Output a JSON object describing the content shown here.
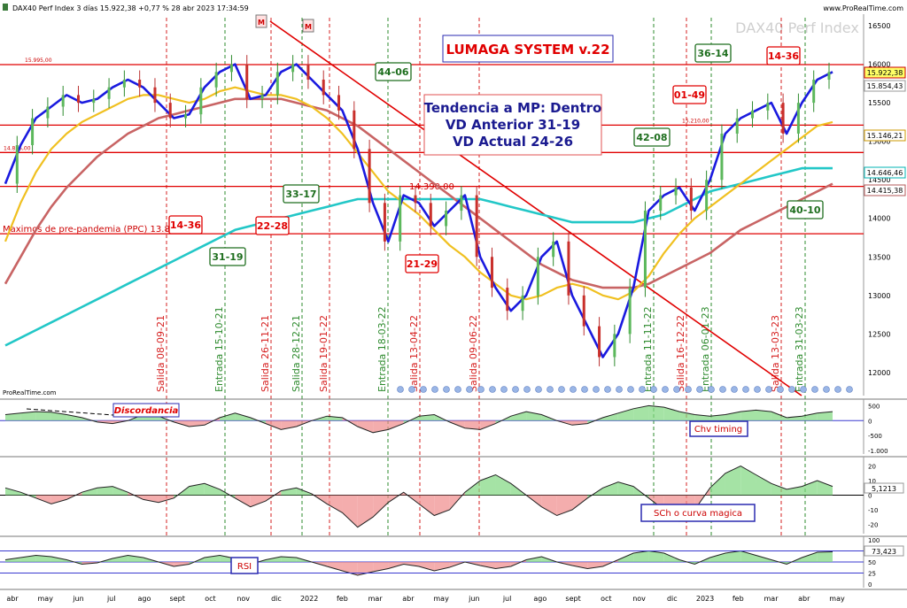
{
  "header": {
    "left": "DAX40 Perf Index 3 días 15.922,38 +0,77 % 28 abr 2023 17:34:59",
    "right": "www.ProRealTime.com"
  },
  "watermark": "DAX40 Perf Index",
  "footer_brand": "ProRealTime.com",
  "system_title": "LUMAGA SYSTEM v.22",
  "trend_box": [
    "Tendencia a MP: Dentro",
    "VD Anterior 31-19",
    "VD Actual 24-26"
  ],
  "level_labels": {
    "l15995": "15.995,00",
    "l15210": "15.210,00",
    "l14855": "14.855,00",
    "l14390": "14.390,00",
    "ppc": "Maximos de pre-pandemia (PPC) 13.8000"
  },
  "boxes": [
    {
      "text": "14-36",
      "color": "red"
    },
    {
      "text": "22-28",
      "color": "red"
    },
    {
      "text": "31-19",
      "color": "green"
    },
    {
      "text": "33-17",
      "color": "green"
    },
    {
      "text": "44-06",
      "color": "green"
    },
    {
      "text": "21-29",
      "color": "red"
    },
    {
      "text": "42-08",
      "color": "green"
    },
    {
      "text": "01-49",
      "color": "red"
    },
    {
      "text": "36-14",
      "color": "green"
    },
    {
      "text": "14-36",
      "color": "red"
    },
    {
      "text": "40-10",
      "color": "green"
    }
  ],
  "markers": [
    "M",
    "M"
  ],
  "price_badges": [
    {
      "text": "15.922,38",
      "bg": "#ffff66",
      "border": "#cc0000"
    },
    {
      "text": "15.854,43",
      "bg": "#ffffff",
      "border": "#999999"
    },
    {
      "text": "15.146,21",
      "bg": "#ffffff",
      "border": "#cc9900"
    },
    {
      "text": "14.646,46",
      "bg": "#ffffff",
      "border": "#00b3b3"
    },
    {
      "text": "14.415,38",
      "bg": "#ffffff",
      "border": "#b35959"
    }
  ],
  "signals": [
    {
      "text": "Salida 08-09-21",
      "type": "exit"
    },
    {
      "text": "Entrada 15-10-21",
      "type": "entry"
    },
    {
      "text": "Salida 26-11-21",
      "type": "exit"
    },
    {
      "text": "Salida 28-12-21",
      "type": "entry"
    },
    {
      "text": "Salida 19-01-22",
      "type": "exit"
    },
    {
      "text": "Entrada 18-03-22",
      "type": "entry"
    },
    {
      "text": "Salida 13-04-22",
      "type": "exit"
    },
    {
      "text": "Salida 09-06-22",
      "type": "exit"
    },
    {
      "text": "Entrada 11-11-22",
      "type": "entry"
    },
    {
      "text": "Salida 16-12-22",
      "type": "exit"
    },
    {
      "text": "Entrada 06-01-23",
      "type": "entry"
    },
    {
      "text": "Salida 13-03-23",
      "type": "exit"
    },
    {
      "text": "Entrada 31-03-23",
      "type": "entry"
    }
  ],
  "x_axis_labels": [
    "abr",
    "may",
    "jun",
    "jul",
    "ago",
    "sept",
    "oct",
    "nov",
    "dic",
    "2022",
    "feb",
    "mar",
    "abr",
    "may",
    "jun",
    "jul",
    "ago",
    "sept",
    "oct",
    "nov",
    "dic",
    "2023",
    "feb",
    "mar",
    "abr",
    "may"
  ],
  "panels": {
    "chv": {
      "label": "Chv timing",
      "note": "Discordancia",
      "ticks": [
        "500",
        "0",
        "-500",
        "-1.000"
      ]
    },
    "sch": {
      "label": "SCh o curva magica",
      "ticks": [
        "20",
        "10",
        "0",
        "-10",
        "-20"
      ],
      "badge": "5,1213"
    },
    "rsi": {
      "label": "RSI",
      "ticks": [
        "100",
        "75",
        "50",
        "25",
        "0"
      ],
      "badge": "73,423"
    }
  },
  "chart_data": {
    "type": "line",
    "title": "DAX40 Perf Index 3 días",
    "y_ticks": [
      16500,
      16000,
      15500,
      15000,
      14500,
      14000,
      13500,
      13000,
      12500,
      12000
    ],
    "ylim": [
      11700,
      16650
    ],
    "series": [
      {
        "name": "DAX40 Perf Index",
        "values": [
          14450,
          14950,
          15300,
          15450,
          15600,
          15500,
          15550,
          15700,
          15800,
          15700,
          15500,
          15300,
          15350,
          15700,
          15900,
          16000,
          15550,
          15600,
          15900,
          16000,
          15800,
          15600,
          15400,
          14900,
          14200,
          13700,
          14300,
          14200,
          13900,
          14100,
          14300,
          13500,
          13100,
          12800,
          13000,
          13500,
          13700,
          13000,
          12600,
          12200,
          12500,
          13100,
          14100,
          14300,
          14400,
          14100,
          14500,
          15100,
          15300,
          15400,
          15500,
          15100,
          15500,
          15800,
          15900
        ]
      },
      {
        "values": [
          13700,
          14200,
          14600,
          14900,
          15100,
          15250,
          15350,
          15450,
          15550,
          15600,
          15600,
          15550,
          15500,
          15550,
          15650,
          15700,
          15650,
          15600,
          15600,
          15550,
          15450,
          15300,
          15100,
          14850,
          14600,
          14350,
          14200,
          14050,
          13850,
          13650,
          13500,
          13300,
          13150,
          13000,
          12950,
          13000,
          13100,
          13150,
          13100,
          13000,
          12950,
          13050,
          13250,
          13550,
          13800,
          14000,
          14150,
          14300,
          14450,
          14600,
          14750,
          14900,
          15050,
          15200,
          15250
        ]
      },
      {
        "values": [
          13150,
          13500,
          13850,
          14150,
          14400,
          14600,
          14800,
          14950,
          15100,
          15200,
          15300,
          15350,
          15400,
          15450,
          15500,
          15550,
          15550,
          15550,
          15550,
          15500,
          15450,
          15400,
          15300,
          15200,
          15050,
          14900,
          14750,
          14600,
          14450,
          14300,
          14150,
          14000,
          13850,
          13700,
          13550,
          13400,
          13300,
          13200,
          13150,
          13100,
          13100,
          13100,
          13150,
          13250,
          13350,
          13450,
          13550,
          13700,
          13850,
          13950,
          14050,
          14150,
          14250,
          14350,
          14450
        ]
      },
      {
        "values": [
          12350,
          12450,
          12550,
          12650,
          12750,
          12850,
          12950,
          13050,
          13150,
          13250,
          13350,
          13450,
          13550,
          13650,
          13750,
          13850,
          13900,
          13950,
          14000,
          14050,
          14100,
          14150,
          14200,
          14250,
          14250,
          14250,
          14250,
          14250,
          14250,
          14250,
          14250,
          14250,
          14200,
          14150,
          14100,
          14050,
          14000,
          13950,
          13950,
          13950,
          13950,
          13950,
          14000,
          14050,
          14150,
          14250,
          14350,
          14400,
          14450,
          14500,
          14550,
          14600,
          14650,
          14650,
          14650
        ]
      }
    ],
    "horizontal_levels": [
      15995,
      15210,
      14855,
      14415,
      13800
    ],
    "chv_timing": [
      200,
      250,
      300,
      280,
      200,
      100,
      -50,
      -100,
      0,
      200,
      150,
      -50,
      -200,
      -150,
      100,
      250,
      100,
      -100,
      -300,
      -200,
      0,
      150,
      100,
      -200,
      -400,
      -300,
      -100,
      150,
      200,
      -50,
      -250,
      -300,
      -100,
      150,
      300,
      200,
      0,
      -150,
      -100,
      100,
      250,
      400,
      500,
      450,
      300,
      200,
      150,
      200,
      300,
      350,
      300,
      100,
      150,
      250,
      300
    ],
    "sch_curve": [
      5,
      2,
      -2,
      -6,
      -3,
      2,
      5,
      6,
      2,
      -3,
      -5,
      -2,
      6,
      8,
      4,
      -2,
      -8,
      -4,
      3,
      5,
      1,
      -6,
      -12,
      -22,
      -15,
      -5,
      2,
      -6,
      -14,
      -10,
      2,
      10,
      14,
      8,
      0,
      -8,
      -14,
      -10,
      -2,
      5,
      9,
      6,
      -2,
      -10,
      -18,
      -10,
      5,
      15,
      20,
      14,
      8,
      4,
      6,
      10,
      6
    ],
    "rsi": [
      55,
      60,
      65,
      62,
      55,
      45,
      48,
      58,
      65,
      60,
      50,
      40,
      45,
      60,
      65,
      58,
      45,
      55,
      62,
      60,
      50,
      40,
      30,
      20,
      28,
      35,
      45,
      40,
      30,
      38,
      50,
      42,
      35,
      40,
      55,
      62,
      50,
      42,
      35,
      40,
      55,
      70,
      75,
      70,
      55,
      45,
      60,
      70,
      75,
      65,
      55,
      45,
      60,
      72,
      73
    ]
  }
}
